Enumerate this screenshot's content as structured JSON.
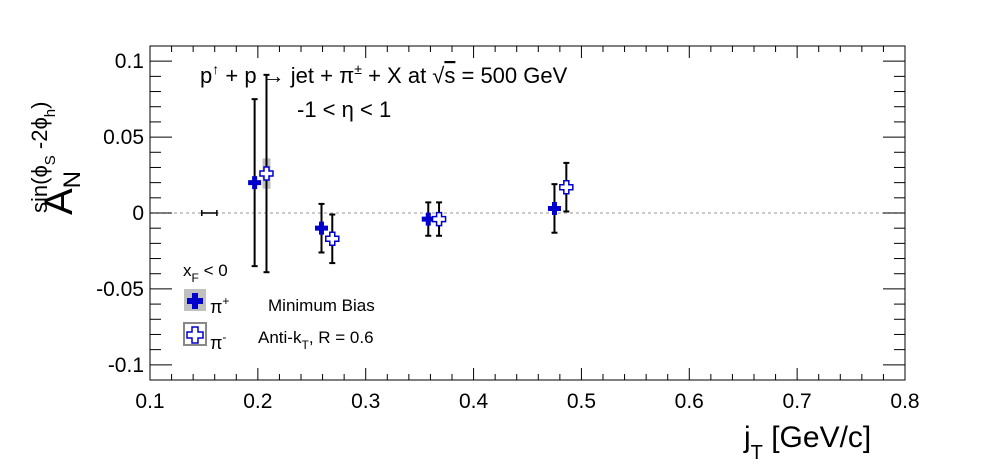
{
  "chart_data": {
    "type": "scatter",
    "title": "p↑ + p → jet + π± + X at √s = 500 GeV",
    "title_parts": {
      "p1": "p",
      "up": "↑",
      "mid": " + p → jet + π",
      "pm": "±",
      "rest": " + X at ",
      "root": "√",
      "s": "s",
      "eq": " = 500 GeV"
    },
    "subtitle": "-1 < η < 1",
    "xlabel": {
      "main": "j",
      "sub": "T",
      "rest": " [GeV/c]"
    },
    "ylabel": {
      "main": "A",
      "sub": "N",
      "sup": "sin(ϕ",
      "sup_s": "S",
      "sup_mid": " -2ϕ",
      "sup_h": "h",
      "sup_end": ")"
    },
    "xlim": [
      0.1,
      0.8
    ],
    "ylim": [
      -0.11,
      0.11
    ],
    "xticks": [
      "0.1",
      "0.2",
      "0.3",
      "0.4",
      "0.5",
      "0.6",
      "0.7",
      "0.8"
    ],
    "yticks": [
      "0.1",
      "0.05",
      "0",
      "-0.05",
      "-0.1"
    ],
    "reference_line": 0,
    "series": [
      {
        "name": "π+",
        "color": "#0000cc",
        "marker": "filled-cross",
        "points": [
          {
            "x": 0.197,
            "y": 0.02,
            "err": 0.055,
            "sys": 0.0
          },
          {
            "x": 0.259,
            "y": -0.01,
            "err": 0.016,
            "sys": 0.0
          },
          {
            "x": 0.358,
            "y": -0.004,
            "err": 0.011,
            "sys": 0.0
          },
          {
            "x": 0.475,
            "y": 0.003,
            "err": 0.016,
            "sys": 0.0
          }
        ]
      },
      {
        "name": "π-",
        "color": "#0000cc",
        "marker": "open-cross",
        "points": [
          {
            "x": 0.208,
            "y": 0.026,
            "err": 0.065,
            "sys": 0.01
          },
          {
            "x": 0.269,
            "y": -0.017,
            "err": 0.016,
            "sys": 0.0
          },
          {
            "x": 0.368,
            "y": -0.004,
            "err": 0.011,
            "sys": 0.0
          },
          {
            "x": 0.486,
            "y": 0.017,
            "err": 0.016,
            "sys": 0.0
          }
        ]
      }
    ],
    "extra_errorbar": {
      "x": 0.155,
      "y": 0,
      "xerr": 0.007
    }
  },
  "legend": {
    "xf_label": {
      "main": "x",
      "sub": "F",
      "rest": " < 0"
    },
    "pi_plus": {
      "main": "π",
      "sup": "+"
    },
    "pi_minus": {
      "main": "π",
      "sup": "-"
    },
    "minbias": "Minimum Bias",
    "antikt": {
      "main": "Anti-k",
      "sub": "T",
      "rest": ", R = 0.6"
    }
  }
}
